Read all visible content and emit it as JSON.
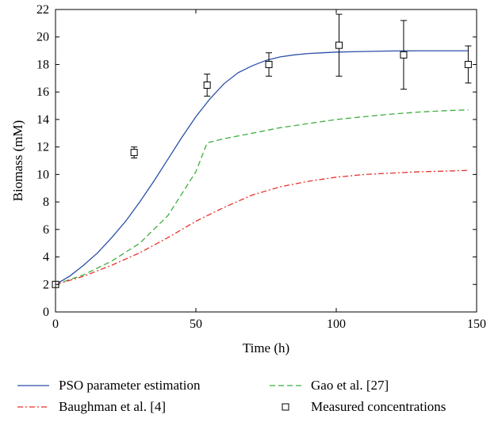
{
  "chart_data": {
    "type": "line",
    "title": "",
    "xlabel": "Time (h)",
    "ylabel": "Biomass (mM)",
    "xlim": [
      0,
      150
    ],
    "ylim": [
      0,
      22
    ],
    "xticks": [
      0,
      50,
      100,
      150
    ],
    "yticks": [
      0,
      2,
      4,
      6,
      8,
      10,
      12,
      14,
      16,
      18,
      20,
      22
    ],
    "grid": false,
    "legend_position": "bottom, outside plot",
    "series": [
      {
        "name": "PSO parameter estimation",
        "style": "solid",
        "color": "#2b4fa8",
        "x": [
          0,
          5,
          10,
          15,
          20,
          25,
          30,
          35,
          40,
          45,
          50,
          55,
          60,
          65,
          70,
          75,
          80,
          85,
          90,
          95,
          100,
          110,
          120,
          130,
          140,
          147
        ],
        "y": [
          2.0,
          2.6,
          3.4,
          4.3,
          5.4,
          6.6,
          8.0,
          9.5,
          11.1,
          12.7,
          14.2,
          15.5,
          16.6,
          17.4,
          17.9,
          18.3,
          18.55,
          18.7,
          18.8,
          18.85,
          18.9,
          18.95,
          18.98,
          19.0,
          19.0,
          19.0
        ]
      },
      {
        "name": "Gao et al. [27]",
        "style": "dashed",
        "color": "#3fae3f",
        "x": [
          0,
          10,
          20,
          30,
          40,
          50,
          54,
          60,
          70,
          80,
          90,
          100,
          110,
          120,
          130,
          140,
          147
        ],
        "y": [
          2.0,
          2.7,
          3.7,
          5.0,
          7.0,
          10.2,
          12.3,
          12.6,
          13.0,
          13.4,
          13.7,
          14.0,
          14.2,
          14.4,
          14.55,
          14.65,
          14.7
        ]
      },
      {
        "name": "Baughman et al. [4]",
        "style": "dash-dot",
        "color": "#e8312b",
        "x": [
          0,
          10,
          20,
          30,
          40,
          50,
          60,
          70,
          80,
          90,
          100,
          110,
          120,
          130,
          140,
          147
        ],
        "y": [
          2.0,
          2.6,
          3.4,
          4.3,
          5.4,
          6.6,
          7.6,
          8.5,
          9.1,
          9.5,
          9.8,
          10.0,
          10.1,
          10.2,
          10.25,
          10.3
        ]
      }
    ],
    "measurements": {
      "name": "Measured concentrations",
      "marker": "square",
      "x": [
        0,
        28,
        54,
        76,
        101,
        124,
        147
      ],
      "y": [
        2.0,
        11.6,
        16.5,
        18.0,
        19.4,
        18.7,
        18.0
      ],
      "err": [
        0,
        0.4,
        0.8,
        0.85,
        2.25,
        2.5,
        1.35
      ]
    }
  }
}
